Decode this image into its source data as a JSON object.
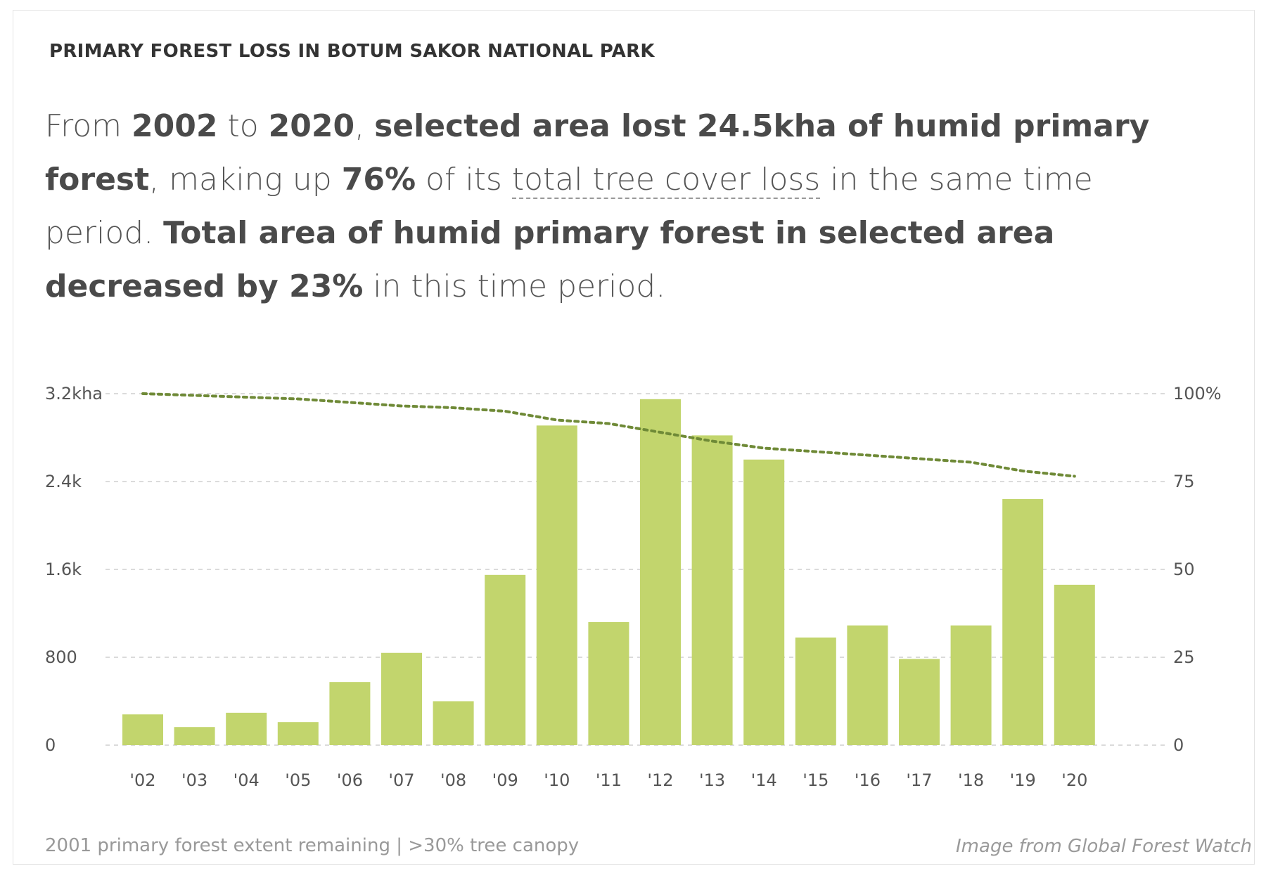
{
  "widget": {
    "title": "PRIMARY FOREST LOSS IN BOTUM SAKOR NATIONAL PARK",
    "summary": {
      "t1": "From ",
      "start_year": "2002",
      "t2": " to ",
      "end_year": "2020",
      "t3": ", ",
      "loss_phrase": "selected area lost 24.5kha of humid primary forest",
      "t4": ", making up ",
      "pct": "76%",
      "t5": " of its ",
      "link": "total tree cover loss",
      "t6": " in the same time period. ",
      "decrease_phrase": "Total area of humid primary forest in selected area decreased by 23%",
      "t7": " in this time period."
    },
    "footer_left": "2001 primary forest extent remaining | >30% tree canopy",
    "footer_right": "Image from Global Forest Watch"
  },
  "colors": {
    "bar": "#c2d56d",
    "line": "#6f8a37",
    "grid": "#cfcfcf"
  },
  "chart_data": {
    "type": "bar",
    "categories": [
      "'02",
      "'03",
      "'04",
      "'05",
      "'06",
      "'07",
      "'08",
      "'09",
      "'10",
      "'11",
      "'12",
      "'13",
      "'14",
      "'15",
      "'16",
      "'17",
      "'18",
      "'19",
      "'20"
    ],
    "series": [
      {
        "values": [
          280,
          165,
          295,
          210,
          575,
          840,
          400,
          1550,
          2910,
          1120,
          3150,
          2820,
          2600,
          980,
          1090,
          785,
          1090,
          2240,
          1460
        ]
      },
      {
        "type": "line",
        "axis": "right",
        "values": [
          100,
          99.5,
          99,
          98.5,
          97.5,
          96.5,
          96,
          95,
          92.5,
          91.5,
          89,
          86.5,
          84.5,
          83.5,
          82.5,
          81.5,
          80.5,
          78,
          76.5
        ]
      }
    ],
    "y_left": {
      "ylim": [
        0,
        3200
      ],
      "ticks": [
        0,
        800,
        1600,
        2400,
        3200
      ],
      "tick_labels": [
        "0",
        "800",
        "1.6k",
        "2.4k",
        "3.2kha"
      ]
    },
    "y_right": {
      "ylim": [
        0,
        100
      ],
      "ticks": [
        0,
        25,
        50,
        75,
        100
      ],
      "tick_labels": [
        "0",
        "25",
        "50",
        "75",
        "100%"
      ]
    },
    "grid": true
  }
}
